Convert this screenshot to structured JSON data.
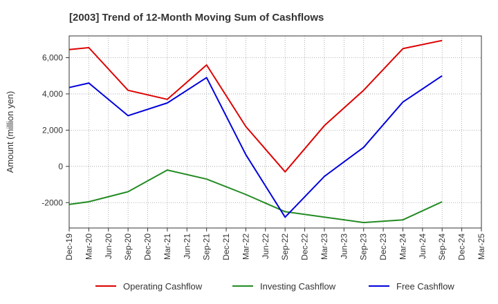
{
  "chart_data": {
    "type": "line",
    "title": "[2003]  Trend of 12-Month Moving Sum of Cashflows",
    "xlabel": "",
    "ylabel": "Amount (million yen)",
    "ylim": [
      -3400,
      7200
    ],
    "yticks": [
      -2000,
      0,
      2000,
      4000,
      6000
    ],
    "ytick_labels": [
      "-2000",
      "0",
      "2,000",
      "4,000",
      "6,000"
    ],
    "x_ticks": [
      "Dec-19",
      "Mar-20",
      "Jun-20",
      "Sep-20",
      "Dec-20",
      "Mar-21",
      "Jun-21",
      "Sep-21",
      "Dec-21",
      "Mar-22",
      "Jun-22",
      "Sep-22",
      "Dec-22",
      "Mar-23",
      "Jun-23",
      "Sep-23",
      "Dec-23",
      "Mar-24",
      "Jun-24",
      "Sep-24",
      "Dec-24",
      "Mar-25"
    ],
    "x": [
      "Dec-19",
      "Mar-20",
      "Sep-20",
      "Mar-21",
      "Sep-21",
      "Mar-22",
      "Sep-22",
      "Mar-23",
      "Sep-23",
      "Mar-24",
      "Sep-24"
    ],
    "series": [
      {
        "name": "Operating Cashflow",
        "color": "#dd0000",
        "values": [
          6450,
          6550,
          4200,
          3700,
          5600,
          2200,
          -300,
          2250,
          4200,
          6500,
          6950
        ]
      },
      {
        "name": "Investing Cashflow",
        "color": "#228b22",
        "values": [
          -2100,
          -1950,
          -1400,
          -200,
          -700,
          -1550,
          -2500,
          -2800,
          -3100,
          -2950,
          -1950
        ]
      },
      {
        "name": "Free Cashflow",
        "color": "#0000dd",
        "values": [
          4350,
          4600,
          2800,
          3500,
          4900,
          650,
          -2800,
          -550,
          1050,
          3550,
          5000
        ]
      }
    ],
    "grid": true,
    "legend_position": "bottom"
  }
}
